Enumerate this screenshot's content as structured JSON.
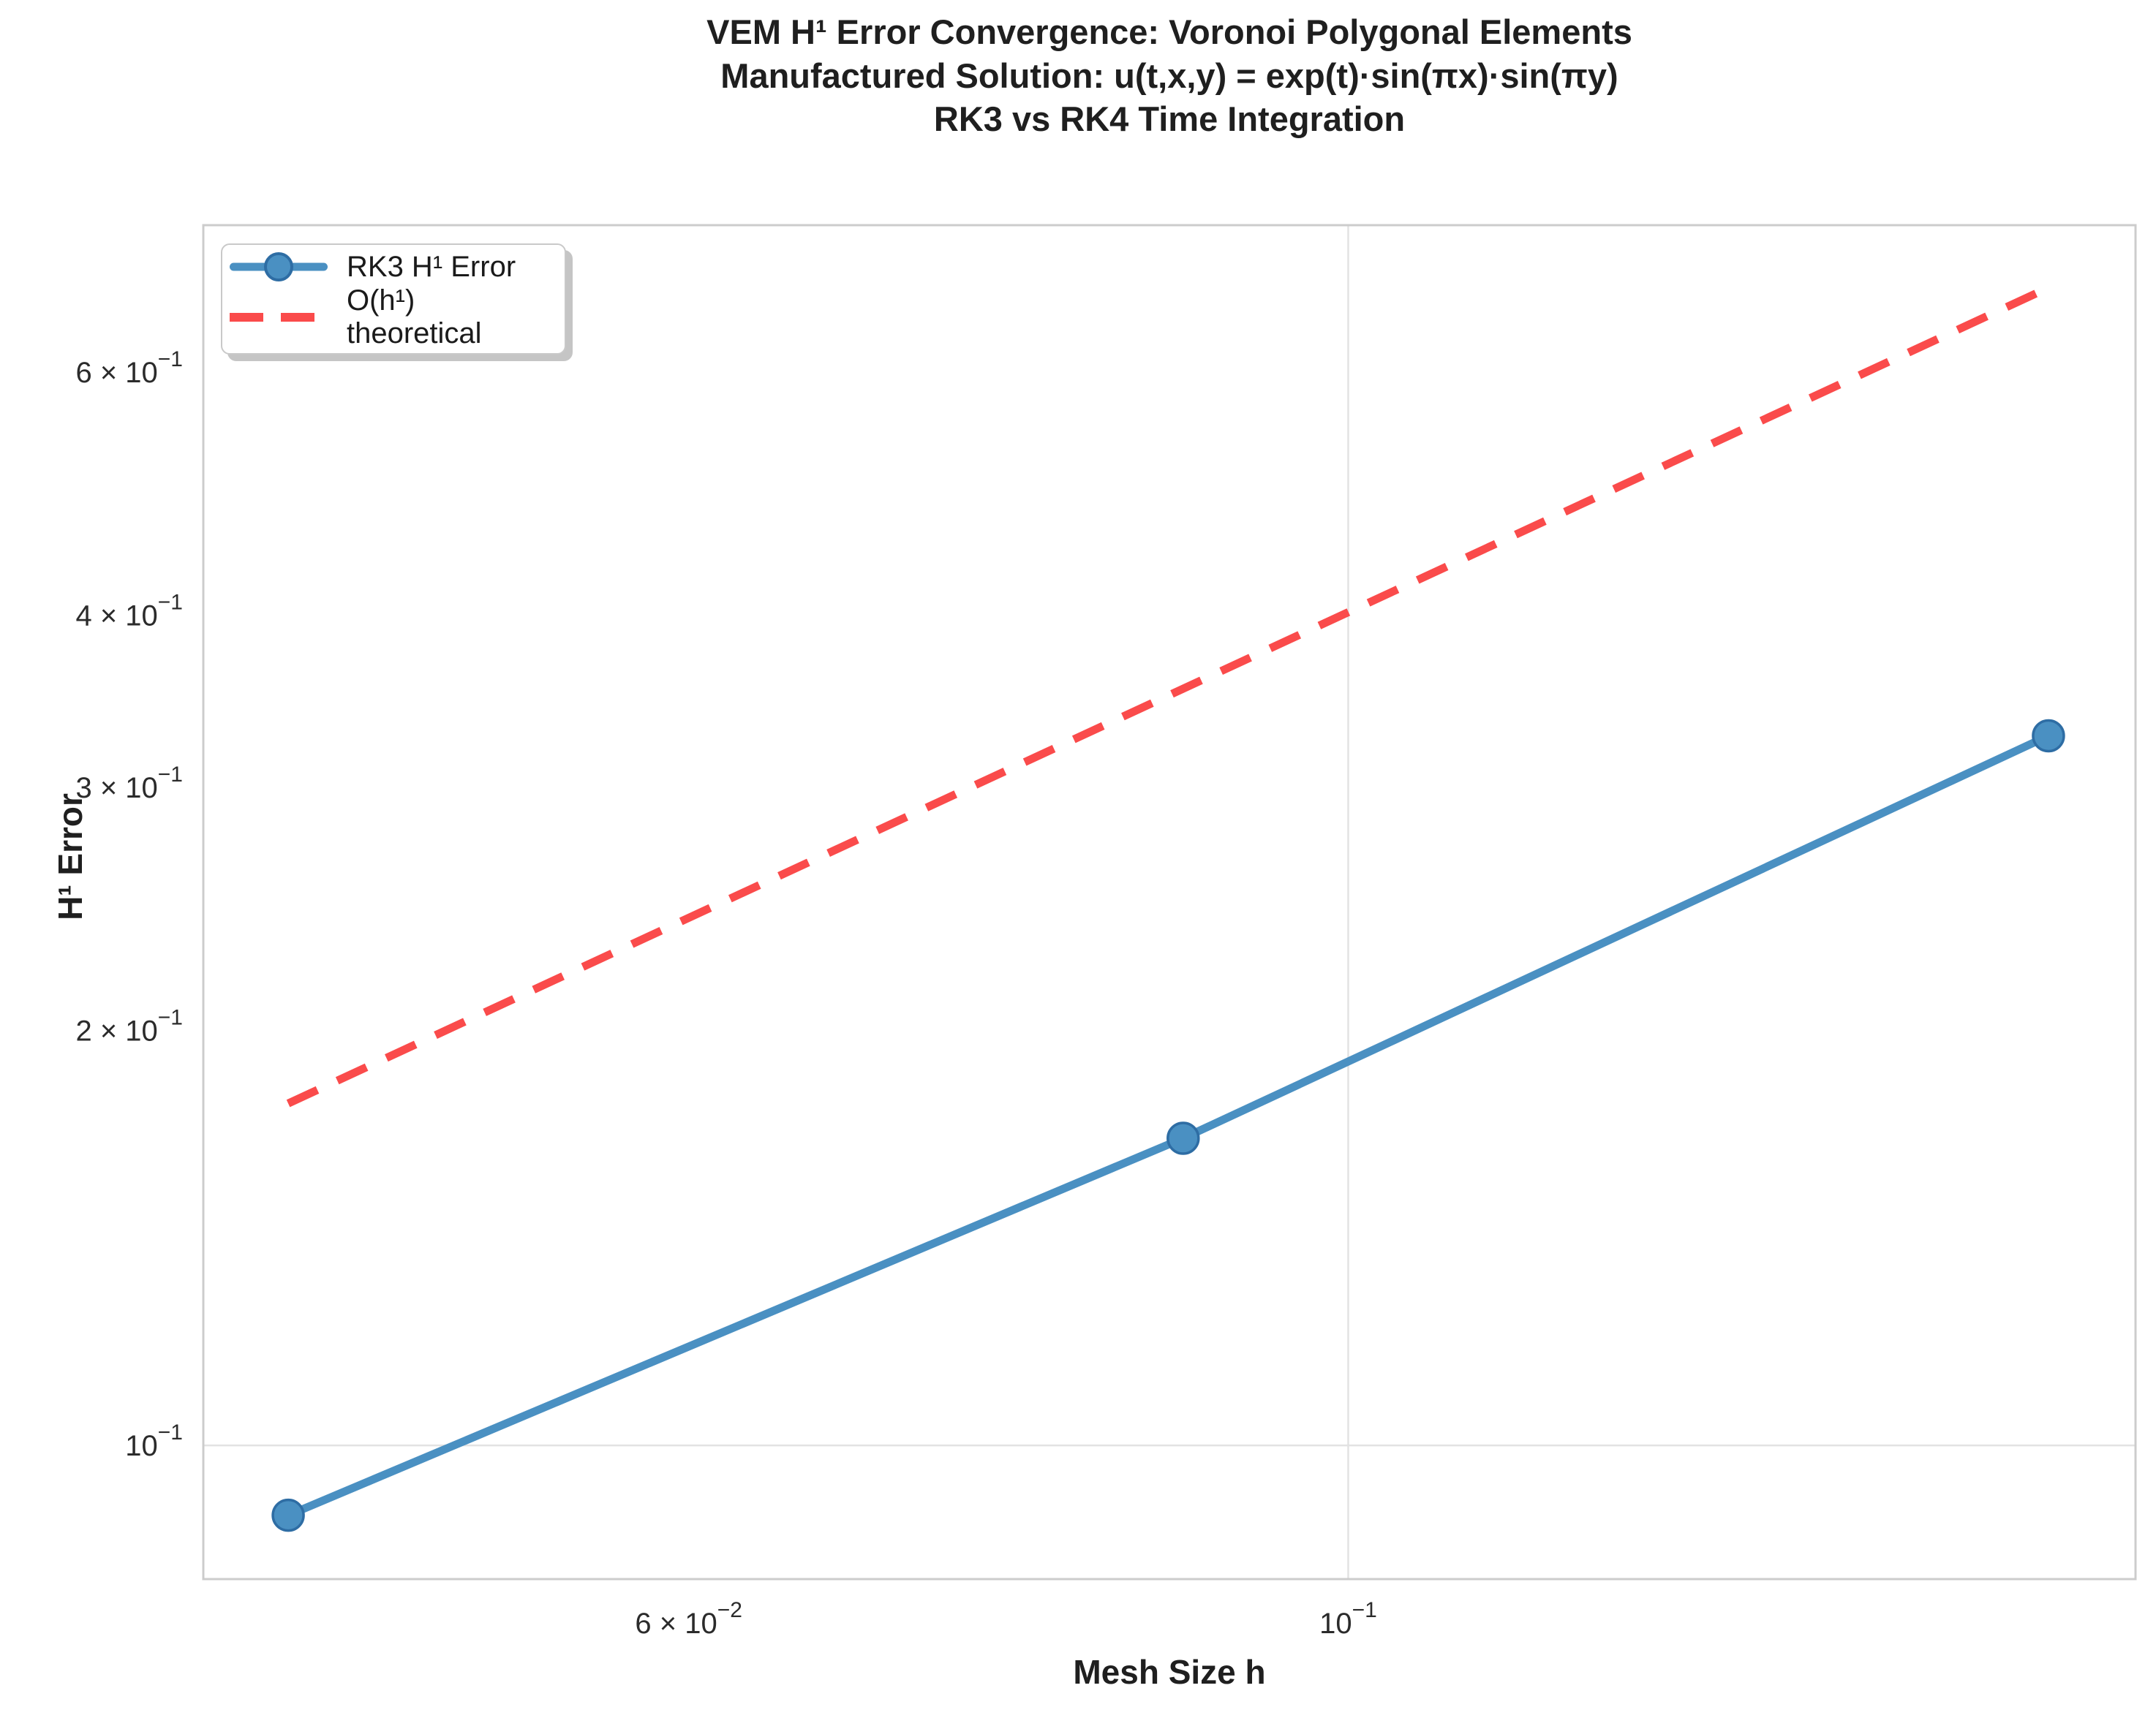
{
  "title": {
    "line1": "VEM H¹ Error Convergence: Voronoi Polygonal Elements",
    "line2": "Manufactured Solution: u(t,x,y) = exp(t)·sin(πx)·sin(πy)",
    "line3": "RK3 vs RK4 Time Integration"
  },
  "axes": {
    "xlabel": "Mesh Size h",
    "ylabel": "H¹ Error"
  },
  "legend": {
    "position": "upper left",
    "items": [
      {
        "label": "RK3 H¹ Error",
        "style": "solid-line-circle-marker",
        "color": "#4a90c2"
      },
      {
        "label": "O(h¹) theoretical",
        "style": "dashed-line",
        "color": "#fa4b4b"
      }
    ]
  },
  "colors": {
    "rk3_line": "#4a90c2",
    "rk3_marker_edge": "#2e6da4",
    "theoretical_line": "#fa4b4b",
    "grid": "#e2e2e2",
    "spine": "#cccccc",
    "tick_text": "#2b2b2b"
  },
  "chart_data": {
    "type": "line",
    "x_scale": "log",
    "y_scale": "log",
    "title": "VEM H¹ Error Convergence: Voronoi Polygonal Elements / Manufactured Solution: u(t,x,y) = exp(t)·sin(πx)·sin(πy) / RK3 vs RK4 Time Integration",
    "xlabel": "Mesh Size h",
    "ylabel": "H¹ Error",
    "xlim": [
      0.0412,
      0.184
    ],
    "ylim": [
      0.08,
      0.767
    ],
    "grid": "major-ticks-only",
    "legend_position": "upper left",
    "series": [
      {
        "name": "RK3 H¹ Error",
        "style": "solid",
        "marker": "circle",
        "color": "#4a90c2",
        "x": [
          0.044,
          0.088,
          0.172
        ],
        "y": [
          0.089,
          0.167,
          0.327
        ]
      },
      {
        "name": "O(h¹) theoretical",
        "style": "dashed",
        "marker": "none",
        "color": "#fa4b4b",
        "slope": 1,
        "x": [
          0.044,
          0.172
        ],
        "y": [
          0.177,
          0.691
        ]
      }
    ],
    "x_ticks": [
      {
        "value": 0.06,
        "base": "6 × 10",
        "exp": "−2",
        "major": false
      },
      {
        "value": 0.1,
        "base": "10",
        "exp": "−1",
        "major": true
      }
    ],
    "y_ticks": [
      {
        "value": 0.6,
        "base": "6 × 10",
        "exp": "−1",
        "major": false
      },
      {
        "value": 0.4,
        "base": "4 × 10",
        "exp": "−1",
        "major": false
      },
      {
        "value": 0.3,
        "base": "3 × 10",
        "exp": "−1",
        "major": false
      },
      {
        "value": 0.2,
        "base": "2 × 10",
        "exp": "−1",
        "major": false
      },
      {
        "value": 0.1,
        "base": "10",
        "exp": "−1",
        "major": true
      }
    ]
  }
}
